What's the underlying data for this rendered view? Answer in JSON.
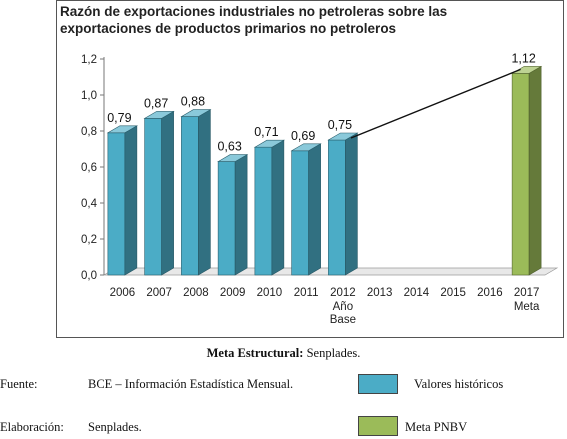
{
  "chart_data": {
    "type": "bar",
    "title_lines": [
      "Razón de exportaciones industriales no petroleras sobre las",
      "exportaciones de productos primarios no petroleros"
    ],
    "categories": [
      "2006",
      "2007",
      "2008",
      "2009",
      "2010",
      "2011",
      "2012",
      "2013",
      "2014",
      "2015",
      "2016",
      "2017"
    ],
    "category_sublabels": {
      "2012": [
        "Año",
        "Base"
      ],
      "2017": [
        "Meta"
      ]
    },
    "series": [
      {
        "name": "Valores históricos",
        "color": "#4BACC6",
        "values": [
          0.79,
          0.87,
          0.88,
          0.63,
          0.71,
          0.69,
          0.75,
          null,
          null,
          null,
          null,
          null
        ]
      },
      {
        "name": "Meta PNBV",
        "color": "#9BBB59",
        "values": [
          null,
          null,
          null,
          null,
          null,
          null,
          null,
          null,
          null,
          null,
          null,
          1.12
        ]
      }
    ],
    "data_labels": [
      "0,79",
      "0,87",
      "0,88",
      "0,63",
      "0,71",
      "0,69",
      "0,75",
      "",
      "",
      "",
      "",
      "1,12"
    ],
    "y_ticks": [
      "0,0",
      "0,2",
      "0,4",
      "0,6",
      "0,8",
      "1,0",
      "1,2"
    ],
    "ylim": [
      0,
      1.2
    ],
    "trend_line": {
      "from": "2012",
      "to": "2017"
    },
    "grid": false
  },
  "caption": {
    "bold": "Meta Estructural:",
    "text": " Senplades."
  },
  "footer": {
    "source_label": "Fuente:",
    "source_text": "BCE – Información Estadística Mensual.",
    "credit_label": "Elaboración:",
    "credit_text": "Senplades.",
    "legend_hist": "Valores históricos",
    "legend_meta": "Meta PNBV",
    "hist_color": "#4BACC6",
    "meta_color": "#9BBB59"
  }
}
